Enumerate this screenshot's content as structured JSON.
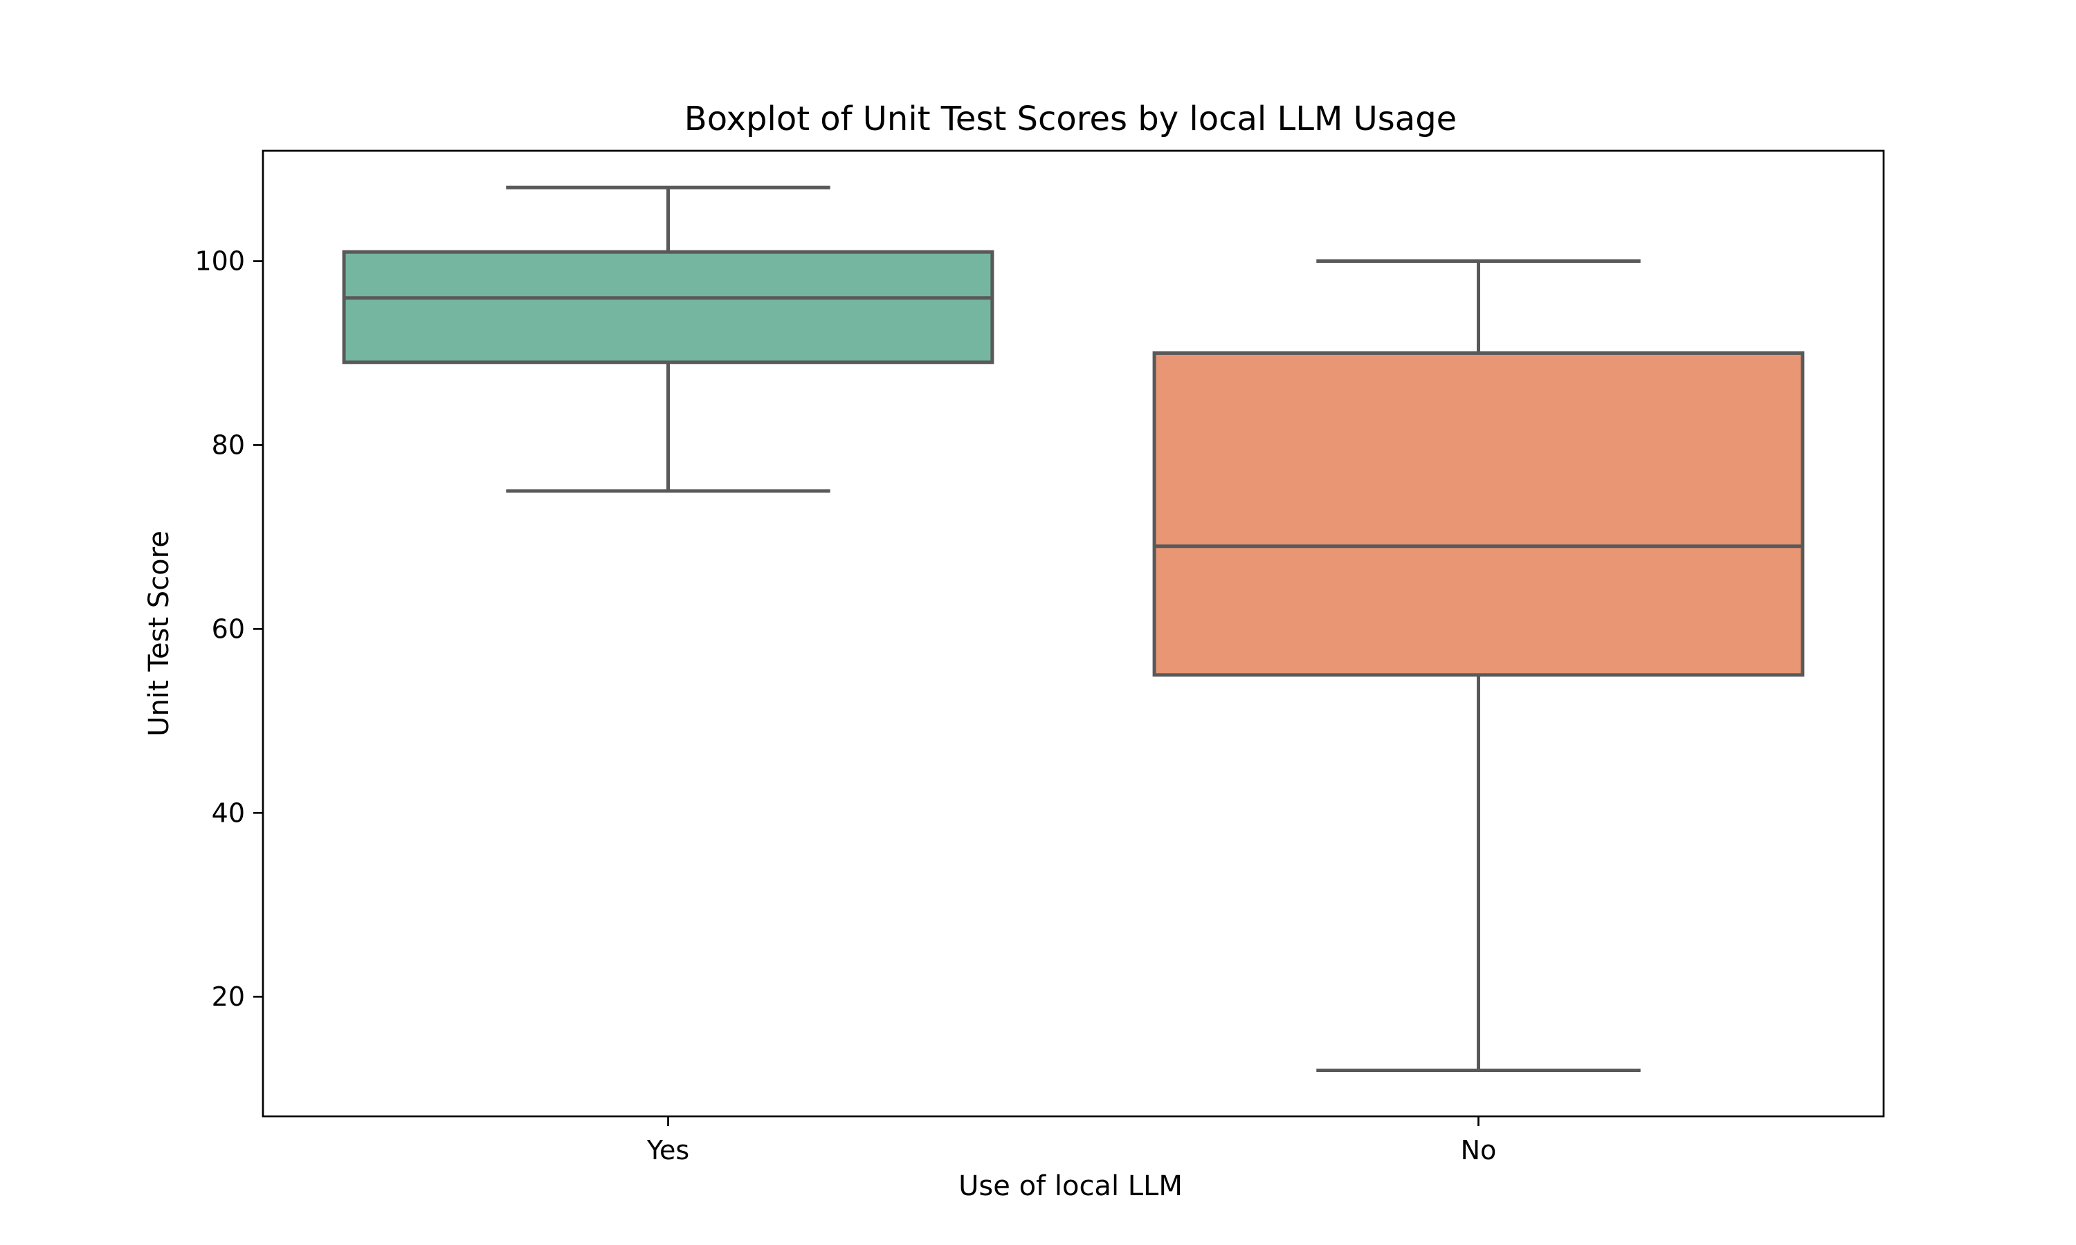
{
  "chart_data": {
    "type": "box",
    "title": "Boxplot of Unit Test Scores by local LLM Usage",
    "xlabel": "Use of local LLM",
    "ylabel": "Unit Test Score",
    "ylim": [
      7,
      112
    ],
    "yticks": [
      20,
      40,
      60,
      80,
      100
    ],
    "grid": false,
    "box_edge_color": "#595959",
    "categories": [
      "Yes",
      "No"
    ],
    "series": [
      {
        "category": "Yes",
        "color": "#74b6a0",
        "whisker_low": 75,
        "q1": 89,
        "median": 96,
        "q3": 101,
        "whisker_high": 108
      },
      {
        "category": "No",
        "color": "#e89674",
        "whisker_low": 12,
        "q1": 55,
        "median": 69,
        "q3": 90,
        "whisker_high": 100
      }
    ]
  }
}
